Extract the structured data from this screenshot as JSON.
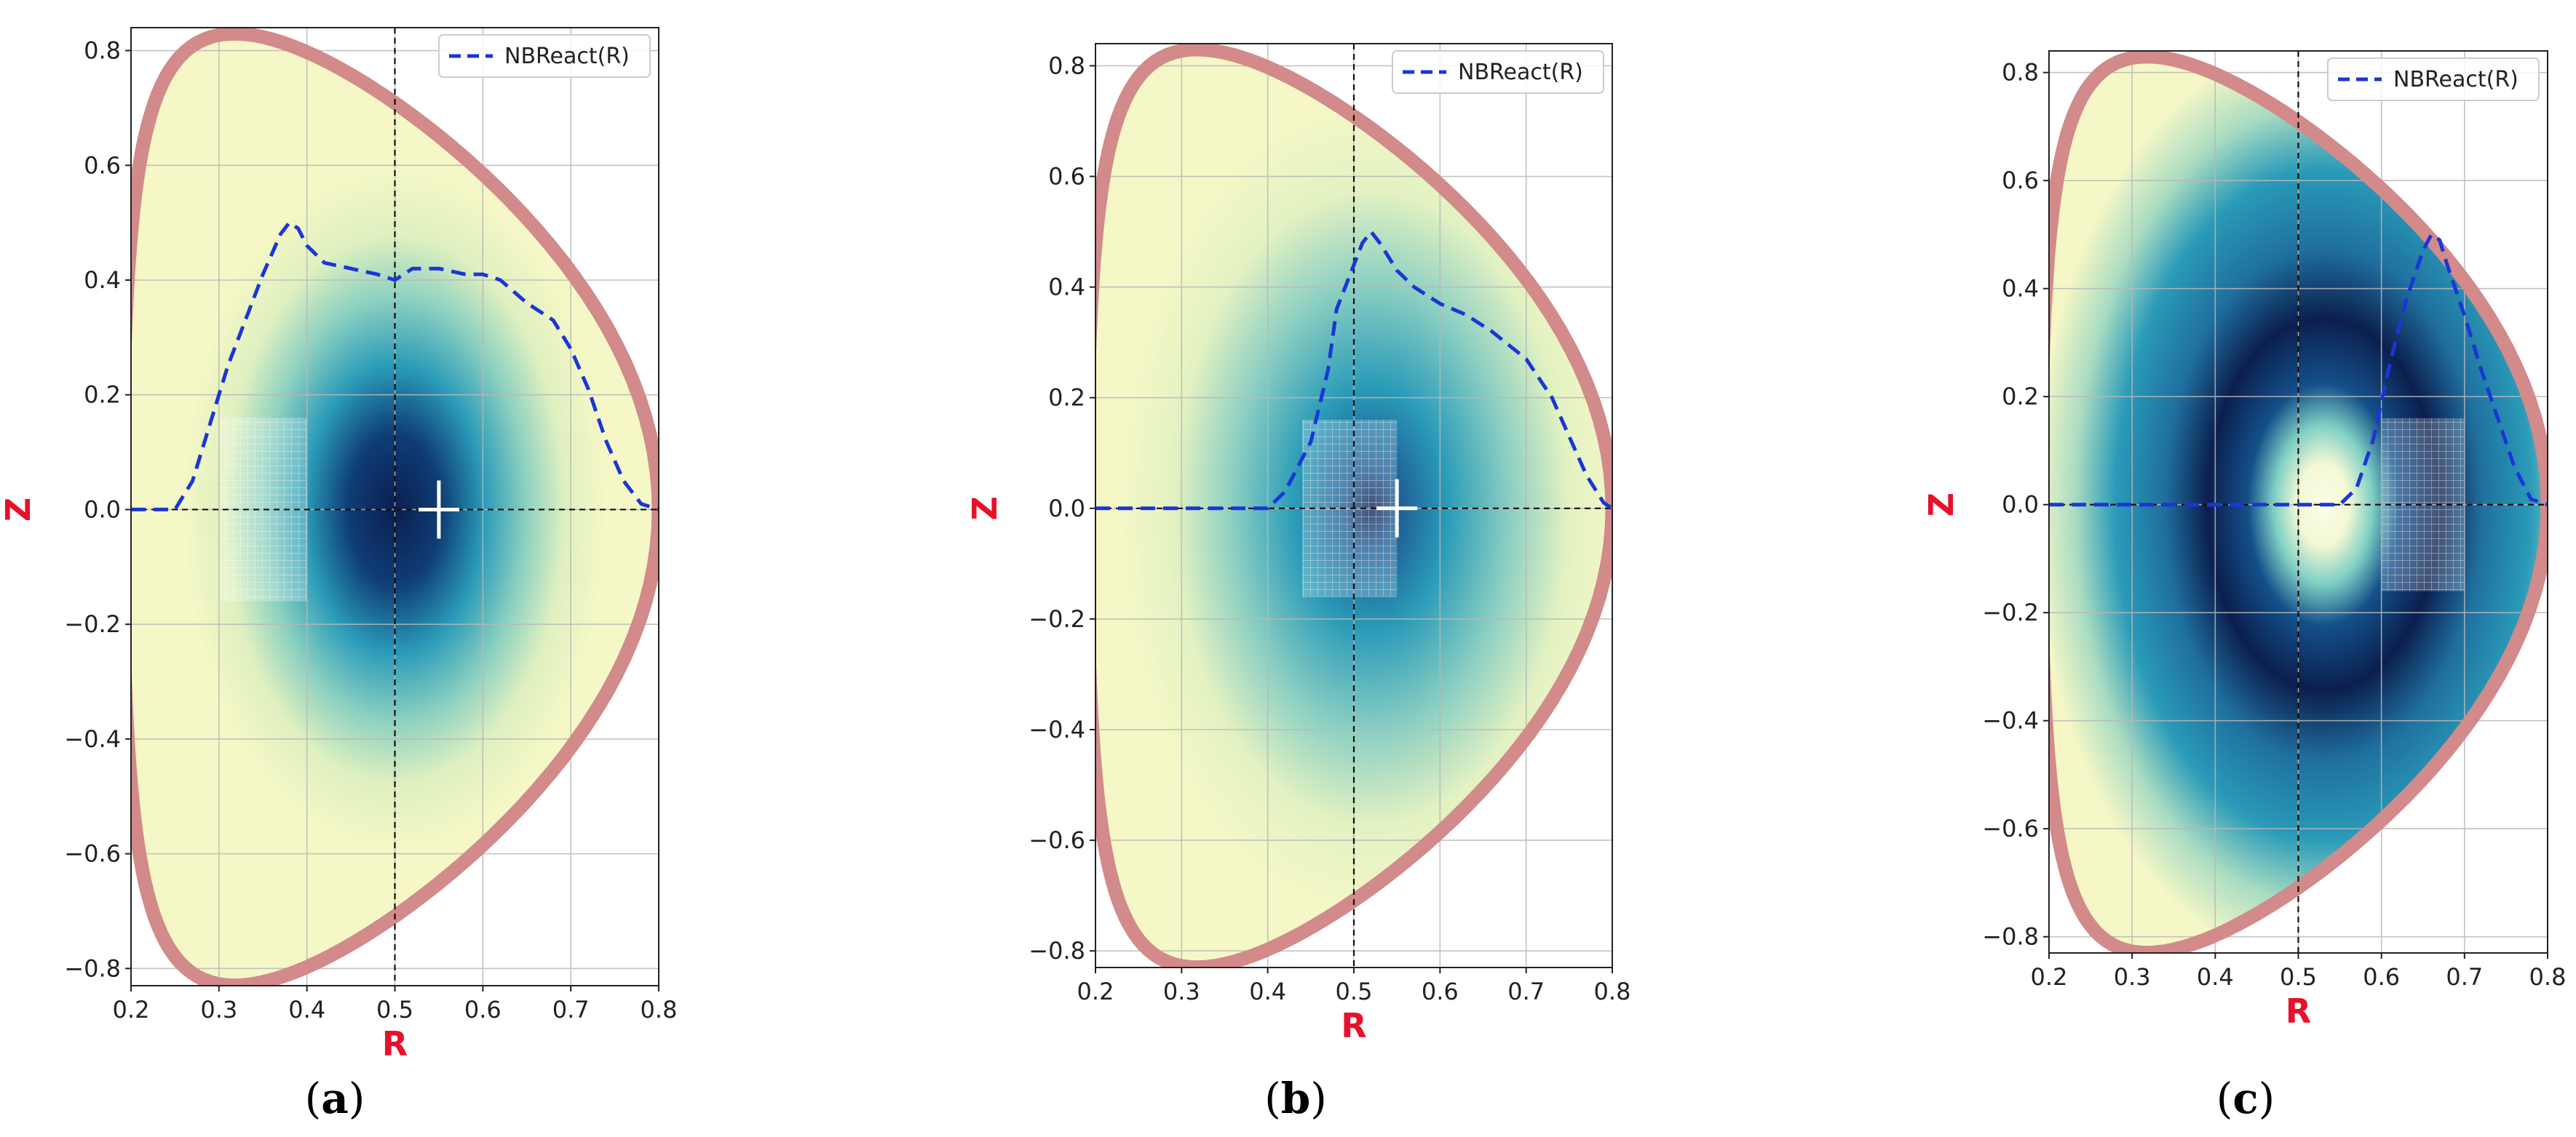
{
  "chart_data": [
    {
      "panel": "(a)",
      "panel_letter": "a",
      "type": "line",
      "xlabel": "R",
      "ylabel": "Z",
      "xlim": [
        0.2,
        0.8
      ],
      "ylim": [
        -0.83,
        0.84
      ],
      "xticks": [
        "0.2",
        "0.3",
        "0.4",
        "0.5",
        "0.6",
        "0.7",
        "0.8"
      ],
      "yticks": [
        "0.8",
        "0.6",
        "0.4",
        "0.2",
        "0.0",
        "−0.2",
        "−0.4",
        "−0.6",
        "−0.8"
      ],
      "grid": true,
      "legend": {
        "position": "top-right",
        "entries": [
          "NBReact(R)"
        ]
      },
      "series": [
        {
          "name": "NBReact(R)",
          "style": "dashed",
          "color": "#1a36d6",
          "x": [
            0.2,
            0.25,
            0.27,
            0.29,
            0.31,
            0.33,
            0.35,
            0.37,
            0.38,
            0.39,
            0.4,
            0.42,
            0.45,
            0.48,
            0.5,
            0.52,
            0.55,
            0.58,
            0.6,
            0.62,
            0.65,
            0.68,
            0.7,
            0.72,
            0.74,
            0.76,
            0.78,
            0.8
          ],
          "y": [
            0.0,
            0.0,
            0.05,
            0.15,
            0.25,
            0.33,
            0.41,
            0.48,
            0.5,
            0.49,
            0.46,
            0.43,
            0.42,
            0.41,
            0.4,
            0.42,
            0.42,
            0.41,
            0.41,
            0.4,
            0.36,
            0.33,
            0.28,
            0.21,
            0.12,
            0.05,
            0.01,
            0.0
          ]
        }
      ],
      "markers": {
        "core_cross": {
          "r": 0.55,
          "z": 0.0
        },
        "shaded_box": {
          "r": [
            0.3,
            0.4
          ],
          "z": [
            -0.16,
            0.16
          ]
        }
      },
      "colormap": {
        "peak": "#0b1f4e",
        "mid": "#2a9bb8",
        "edge": "#f5f7c6",
        "wall": "#d28a8a"
      }
    },
    {
      "panel": "(b)",
      "panel_letter": "b",
      "type": "line",
      "xlabel": "R",
      "ylabel": "Z",
      "xlim": [
        0.2,
        0.8
      ],
      "ylim": [
        -0.83,
        0.84
      ],
      "xticks": [
        "0.2",
        "0.3",
        "0.4",
        "0.5",
        "0.6",
        "0.7",
        "0.8"
      ],
      "yticks": [
        "0.8",
        "0.6",
        "0.4",
        "0.2",
        "0.0",
        "−0.2",
        "−0.4",
        "−0.6",
        "−0.8"
      ],
      "grid": true,
      "legend": {
        "position": "top-right",
        "entries": [
          "NBReact(R)"
        ]
      },
      "series": [
        {
          "name": "NBReact(R)",
          "style": "dashed",
          "color": "#1a36d6",
          "x": [
            0.2,
            0.4,
            0.42,
            0.45,
            0.47,
            0.48,
            0.5,
            0.51,
            0.52,
            0.53,
            0.55,
            0.57,
            0.6,
            0.63,
            0.66,
            0.7,
            0.73,
            0.75,
            0.77,
            0.79,
            0.8
          ],
          "y": [
            0.0,
            0.0,
            0.03,
            0.12,
            0.25,
            0.36,
            0.44,
            0.48,
            0.5,
            0.48,
            0.43,
            0.4,
            0.37,
            0.35,
            0.32,
            0.27,
            0.2,
            0.13,
            0.06,
            0.01,
            0.0
          ]
        }
      ],
      "markers": {
        "core_cross": {
          "r": 0.55,
          "z": 0.0
        },
        "shaded_box": {
          "r": [
            0.44,
            0.55
          ],
          "z": [
            -0.16,
            0.16
          ]
        }
      },
      "colormap": {
        "peak": "#0b1f4e",
        "mid": "#2a9bb8",
        "edge": "#f5f7c6",
        "wall": "#d28a8a"
      }
    },
    {
      "panel": "(c)",
      "panel_letter": "c",
      "type": "line",
      "xlabel": "R",
      "ylabel": "Z",
      "xlim": [
        0.2,
        0.8
      ],
      "ylim": [
        -0.83,
        0.84
      ],
      "xticks": [
        "0.2",
        "0.3",
        "0.4",
        "0.5",
        "0.6",
        "0.7",
        "0.8"
      ],
      "yticks": [
        "0.8",
        "0.6",
        "0.4",
        "0.2",
        "0.0",
        "−0.2",
        "−0.4",
        "−0.6",
        "−0.8"
      ],
      "grid": true,
      "legend": {
        "position": "top-right",
        "entries": [
          "NBReact(R)"
        ]
      },
      "series": [
        {
          "name": "NBReact(R)",
          "style": "dashed",
          "color": "#1a36d6",
          "x": [
            0.2,
            0.55,
            0.57,
            0.59,
            0.61,
            0.63,
            0.65,
            0.66,
            0.67,
            0.68,
            0.7,
            0.72,
            0.74,
            0.76,
            0.78,
            0.8
          ],
          "y": [
            0.0,
            0.0,
            0.03,
            0.12,
            0.26,
            0.38,
            0.47,
            0.5,
            0.49,
            0.44,
            0.35,
            0.25,
            0.16,
            0.07,
            0.01,
            0.0
          ]
        }
      ],
      "markers": {
        "shaded_box": {
          "r": [
            0.6,
            0.7
          ],
          "z": [
            -0.16,
            0.16
          ]
        }
      },
      "colormap": {
        "peak": "#0b1f4e",
        "mid": "#2a9bb8",
        "edge": "#f5f7c6",
        "hole": "#fdfde8",
        "wall": "#d28a8a"
      }
    }
  ]
}
